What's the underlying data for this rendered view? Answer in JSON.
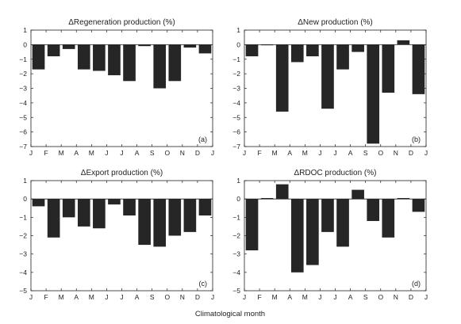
{
  "figure": {
    "xlabel": "Climatological month",
    "month_ticks": [
      "J",
      "F",
      "M",
      "A",
      "M",
      "J",
      "J",
      "A",
      "S",
      "O",
      "N",
      "D",
      "J"
    ]
  },
  "chart_data": [
    {
      "type": "bar",
      "title": "ΔRegeneration production (%)",
      "panel_label": "(a)",
      "xlabel": "Climatological month",
      "ylabel": "",
      "categories": [
        "J",
        "F",
        "M",
        "A",
        "M",
        "J",
        "J",
        "A",
        "S",
        "O",
        "N",
        "D"
      ],
      "values": [
        -1.7,
        -0.8,
        -0.3,
        -1.7,
        -1.8,
        -2.1,
        -2.5,
        -0.1,
        -3.0,
        -2.5,
        -0.2,
        -0.6
      ],
      "ylim": [
        -7,
        1
      ],
      "yticks": [
        1,
        0,
        -1,
        -2,
        -3,
        -4,
        -5,
        -6,
        -7
      ],
      "grid": false
    },
    {
      "type": "bar",
      "title": "ΔNew production (%)",
      "panel_label": "(b)",
      "xlabel": "Climatological month",
      "ylabel": "",
      "categories": [
        "J",
        "F",
        "M",
        "A",
        "M",
        "J",
        "J",
        "A",
        "S",
        "O",
        "N",
        "D"
      ],
      "values": [
        -0.8,
        0.0,
        -4.6,
        -1.2,
        -0.8,
        -4.4,
        -1.7,
        -0.5,
        -6.8,
        -3.3,
        0.3,
        -3.4
      ],
      "ylim": [
        -7,
        1
      ],
      "yticks": [
        1,
        0,
        -1,
        -2,
        -3,
        -4,
        -5,
        -6,
        -7
      ],
      "grid": false
    },
    {
      "type": "bar",
      "title": "ΔExport production (%)",
      "panel_label": "(c)",
      "xlabel": "Climatological month",
      "ylabel": "",
      "categories": [
        "J",
        "F",
        "M",
        "A",
        "M",
        "J",
        "J",
        "A",
        "S",
        "O",
        "N",
        "D"
      ],
      "values": [
        -0.4,
        -2.1,
        -1.0,
        -1.5,
        -1.6,
        -0.3,
        -0.9,
        -2.5,
        -2.6,
        -2.0,
        -1.8,
        -0.9
      ],
      "ylim": [
        -5,
        1
      ],
      "yticks": [
        1,
        0,
        -1,
        -2,
        -3,
        -4,
        -5
      ],
      "grid": false
    },
    {
      "type": "bar",
      "title": "ΔRDOC production (%)",
      "panel_label": "(d)",
      "xlabel": "Climatological month",
      "ylabel": "",
      "categories": [
        "J",
        "F",
        "M",
        "A",
        "M",
        "J",
        "J",
        "A",
        "S",
        "O",
        "N",
        "D"
      ],
      "values": [
        -2.8,
        0.05,
        0.8,
        -4.0,
        -3.6,
        -1.8,
        -2.6,
        0.5,
        -1.2,
        -2.1,
        0.05,
        -0.7
      ],
      "ylim": [
        -5,
        1
      ],
      "yticks": [
        1,
        0,
        -1,
        -2,
        -3,
        -4,
        -5
      ],
      "grid": false
    }
  ]
}
